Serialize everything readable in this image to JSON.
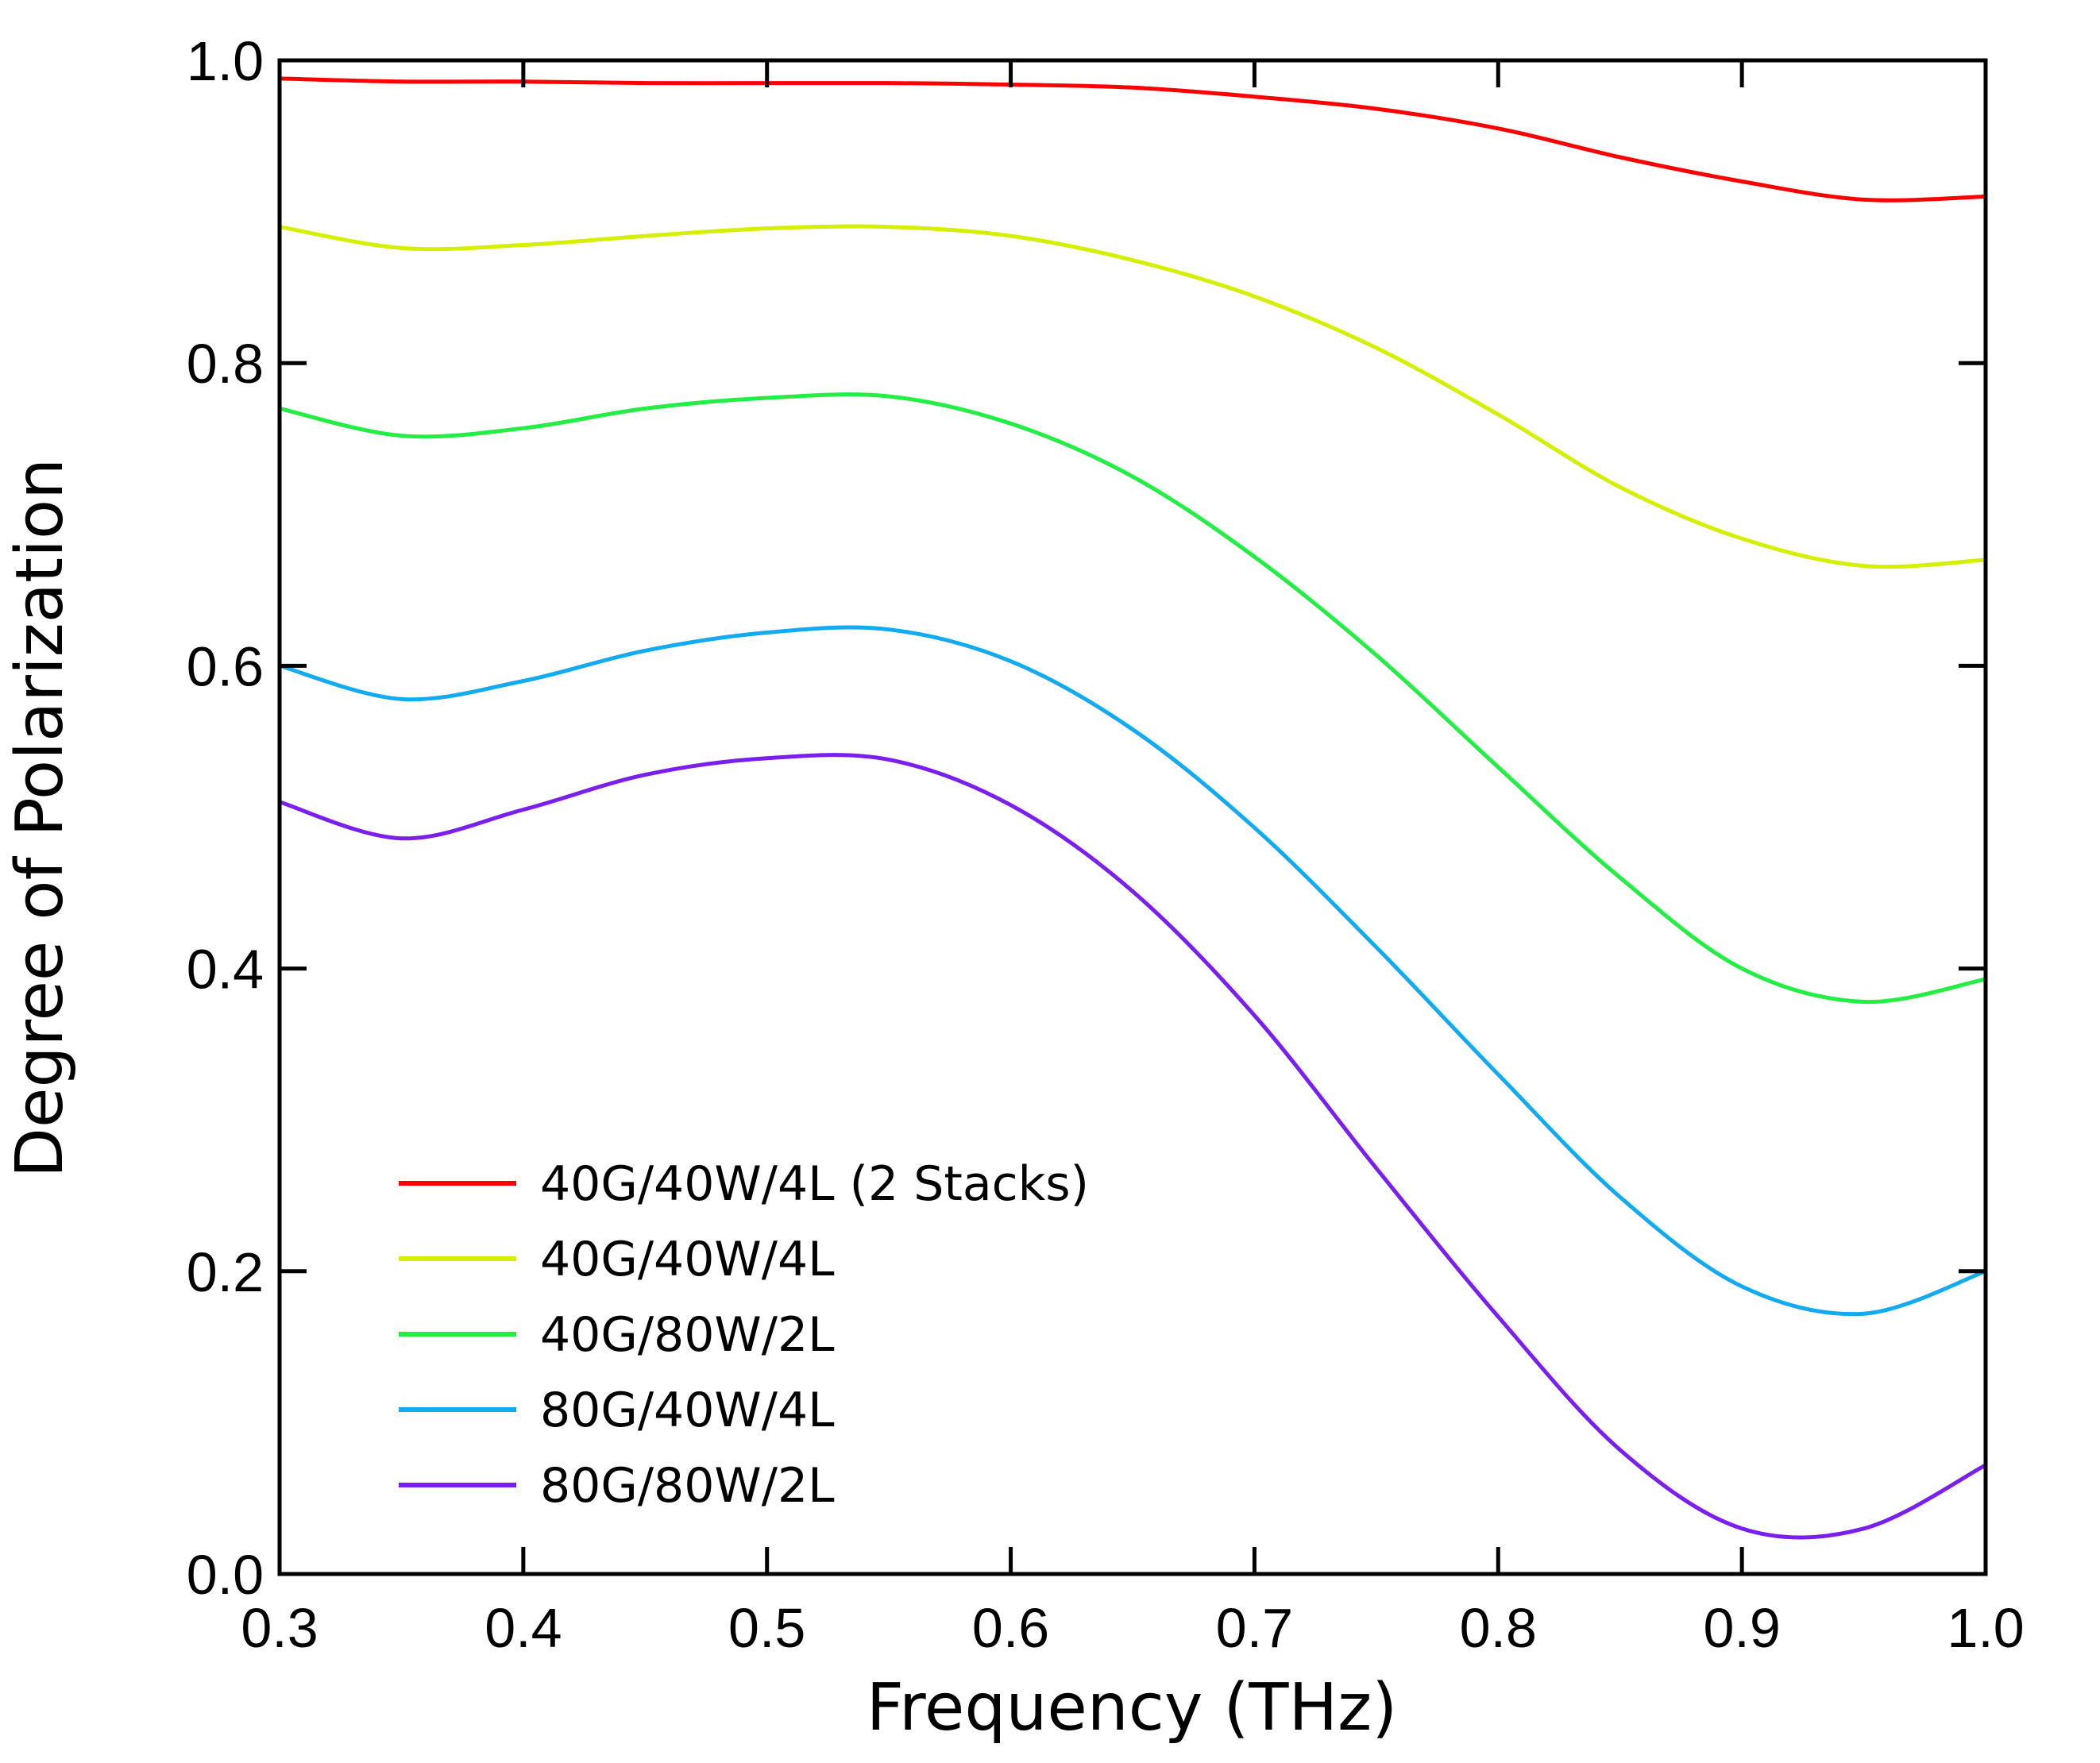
{
  "chart_data": {
    "type": "line",
    "title": "",
    "xlabel": "Frequency (THz)",
    "ylabel": "Degree of Polarization",
    "xlim": [
      0.3,
      1.0
    ],
    "ylim": [
      0.0,
      1.0
    ],
    "xticks": [
      "0.3",
      "0.4",
      "0.5",
      "0.6",
      "0.7",
      "0.8",
      "0.9",
      "1.0"
    ],
    "yticks": [
      "0.0",
      "0.2",
      "0.4",
      "0.6",
      "0.8",
      "1.0"
    ],
    "grid": false,
    "legend_position": "bottom-left",
    "x": [
      0.3,
      0.35,
      0.4,
      0.45,
      0.5,
      0.55,
      0.6,
      0.65,
      0.7,
      0.75,
      0.8,
      0.85,
      0.9,
      0.95,
      1.0
    ],
    "series": [
      {
        "name": "40G/40W/4L (2 Stacks)",
        "color": "#ff0000",
        "values": [
          0.988,
          0.986,
          0.986,
          0.985,
          0.985,
          0.985,
          0.984,
          0.982,
          0.976,
          0.968,
          0.955,
          0.936,
          0.92,
          0.908,
          0.91
        ]
      },
      {
        "name": "40G/40W/4L",
        "color": "#d4f000",
        "values": [
          0.89,
          0.876,
          0.878,
          0.884,
          0.889,
          0.89,
          0.884,
          0.868,
          0.844,
          0.81,
          0.766,
          0.718,
          0.684,
          0.666,
          0.67
        ]
      },
      {
        "name": "40G/80W/2L",
        "color": "#22ee44",
        "values": [
          0.77,
          0.752,
          0.757,
          0.77,
          0.777,
          0.778,
          0.76,
          0.725,
          0.672,
          0.607,
          0.533,
          0.46,
          0.4,
          0.378,
          0.393
        ]
      },
      {
        "name": "80G/40W/4L",
        "color": "#12aaf0",
        "values": [
          0.6,
          0.578,
          0.59,
          0.61,
          0.622,
          0.624,
          0.603,
          0.558,
          0.493,
          0.414,
          0.33,
          0.249,
          0.19,
          0.172,
          0.2
        ]
      },
      {
        "name": "80G/80W/2L",
        "color": "#7b1ef0",
        "values": [
          0.51,
          0.486,
          0.505,
          0.528,
          0.539,
          0.538,
          0.508,
          0.451,
          0.369,
          0.268,
          0.17,
          0.082,
          0.03,
          0.03,
          0.072
        ]
      }
    ]
  }
}
